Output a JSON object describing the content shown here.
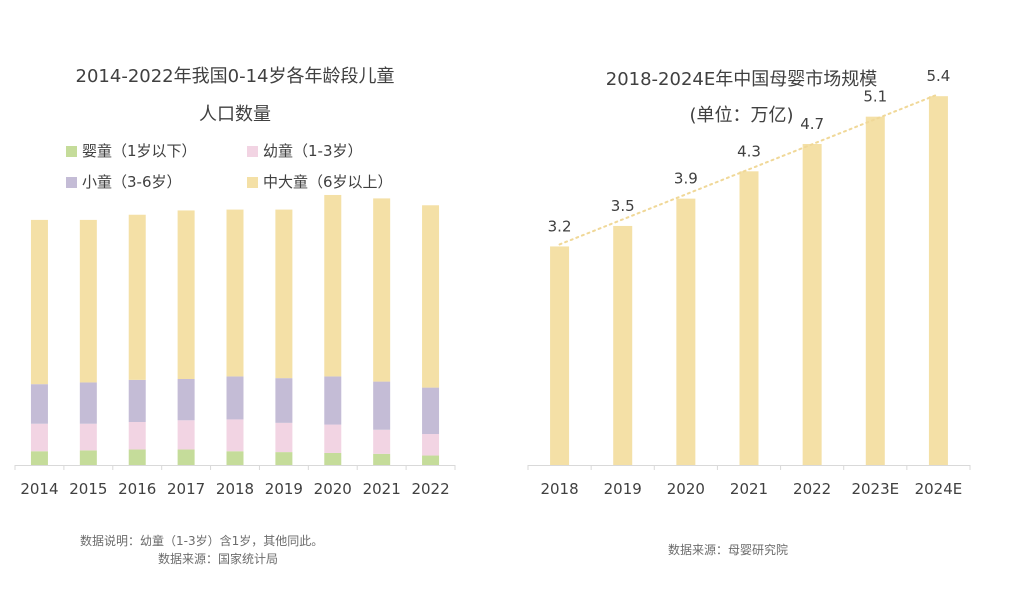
{
  "charts": {
    "left": {
      "title_line1": "2014-2022年我国0-14岁各年龄段儿童",
      "title_line2": "人口数量",
      "note_line1": "数据说明：幼童（1-3岁）含1岁，其他同此。",
      "note_line2": "数据来源：国家统计局"
    },
    "right": {
      "title_line1": "2018-2024E年中国母婴市场规模",
      "title_line2": "(单位：万亿)",
      "source": "数据来源：母婴研究院"
    }
  },
  "chart_data": [
    {
      "type": "bar",
      "stacked": true,
      "title": "2014-2022年我国0-14岁各年龄段儿童人口数量",
      "categories": [
        "2014",
        "2015",
        "2016",
        "2017",
        "2018",
        "2019",
        "2020",
        "2021",
        "2022"
      ],
      "series": [
        {
          "name": "婴童（1岁以下）",
          "color": "#c5dc9a",
          "values": [
            1.6,
            1.7,
            1.8,
            1.8,
            1.6,
            1.5,
            1.4,
            1.3,
            1.1
          ]
        },
        {
          "name": "幼童（1-3岁）",
          "color": "#f2d4e3",
          "values": [
            3.2,
            3.1,
            3.2,
            3.4,
            3.7,
            3.4,
            3.3,
            2.8,
            2.5
          ]
        },
        {
          "name": "小童（3-6岁）",
          "color": "#c4bcd6",
          "values": [
            4.6,
            4.8,
            4.9,
            4.8,
            5.0,
            5.2,
            5.6,
            5.6,
            5.4
          ]
        },
        {
          "name": "中大童（6岁以上）",
          "color": "#f4e0a6",
          "values": [
            19.1,
            18.9,
            19.2,
            19.6,
            19.4,
            19.6,
            21.1,
            21.3,
            21.2
          ]
        }
      ],
      "ylim": [
        0,
        30
      ],
      "legend_position": "top",
      "grid": false
    },
    {
      "type": "bar",
      "title": "2018-2024E年中国母婴市场规模",
      "subtitle": "(单位：万亿)",
      "categories": [
        "2018",
        "2019",
        "2020",
        "2021",
        "2022",
        "2023E",
        "2024E"
      ],
      "values": [
        3.2,
        3.5,
        3.9,
        4.3,
        4.7,
        5.1,
        5.4
      ],
      "color": "#f4e0a6",
      "trendline": {
        "style": "dotted",
        "color": "#f0d898"
      },
      "data_labels": true,
      "ylim": [
        0,
        7.8
      ],
      "grid": false
    }
  ]
}
